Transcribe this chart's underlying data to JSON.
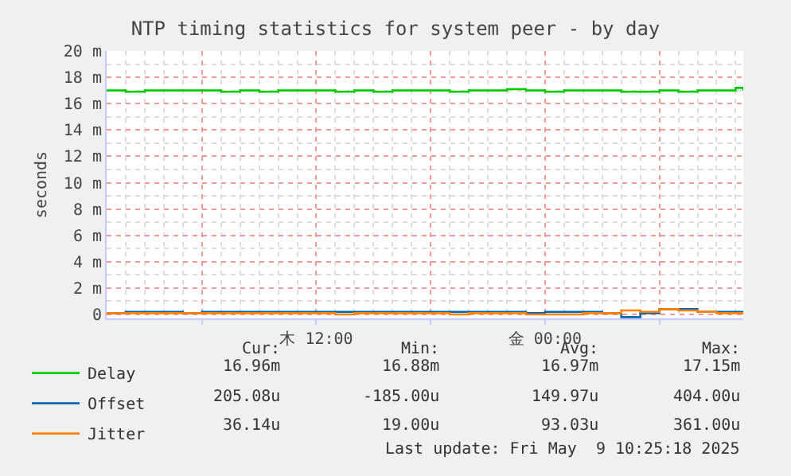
{
  "chart_data": {
    "type": "step",
    "title": "NTP timing statistics for system peer - by day",
    "ylabel": "seconds",
    "xlim": [
      "2025-05-08T01:00",
      "2025-05-09T10:24"
    ],
    "xticks": [
      {
        "value": "2025-05-08T06:00",
        "label": null
      },
      {
        "value": "2025-05-08T12:00",
        "label": "木 12:00"
      },
      {
        "value": "2025-05-08T18:00",
        "label": null
      },
      {
        "value": "2025-05-09T00:00",
        "label": "金 00:00"
      },
      {
        "value": "2025-05-09T06:00",
        "label": null
      }
    ],
    "ylim": [
      -0.3,
      20
    ],
    "yticks": [
      {
        "value": 0,
        "label": "0"
      },
      {
        "value": 2,
        "label": "2 m"
      },
      {
        "value": 4,
        "label": "4 m"
      },
      {
        "value": 6,
        "label": "6 m"
      },
      {
        "value": 8,
        "label": "8 m"
      },
      {
        "value": 10,
        "label": "10 m"
      },
      {
        "value": 12,
        "label": "12 m"
      },
      {
        "value": 14,
        "label": "14 m"
      },
      {
        "value": 16,
        "label": "16 m"
      },
      {
        "value": 18,
        "label": "18 m"
      },
      {
        "value": 20,
        "label": "20 m"
      }
    ],
    "x": [
      "2025-05-08T01:00",
      "2025-05-08T02:00",
      "2025-05-08T03:00",
      "2025-05-08T04:00",
      "2025-05-08T05:00",
      "2025-05-08T06:00",
      "2025-05-08T07:00",
      "2025-05-08T08:00",
      "2025-05-08T09:00",
      "2025-05-08T10:00",
      "2025-05-08T11:00",
      "2025-05-08T12:00",
      "2025-05-08T13:00",
      "2025-05-08T14:00",
      "2025-05-08T15:00",
      "2025-05-08T16:00",
      "2025-05-08T17:00",
      "2025-05-08T18:00",
      "2025-05-08T19:00",
      "2025-05-08T20:00",
      "2025-05-08T21:00",
      "2025-05-08T22:00",
      "2025-05-08T23:00",
      "2025-05-09T00:00",
      "2025-05-09T01:00",
      "2025-05-09T02:00",
      "2025-05-09T03:00",
      "2025-05-09T04:00",
      "2025-05-09T05:00",
      "2025-05-09T06:00",
      "2025-05-09T07:00",
      "2025-05-09T08:00",
      "2025-05-09T09:00",
      "2025-05-09T10:00",
      "2025-05-09T10:24"
    ],
    "series": [
      {
        "name": "Delay",
        "color": "#00cc00",
        "values": [
          17.0,
          16.9,
          17.0,
          17.0,
          17.0,
          17.0,
          16.9,
          17.0,
          16.9,
          17.0,
          17.0,
          17.0,
          16.9,
          17.0,
          16.9,
          17.0,
          17.0,
          17.0,
          16.9,
          17.0,
          17.0,
          17.1,
          17.0,
          16.9,
          17.0,
          17.0,
          17.0,
          16.9,
          16.9,
          17.0,
          16.9,
          17.0,
          17.0,
          17.2,
          17.0
        ]
      },
      {
        "name": "Offset",
        "color": "#0066b3",
        "values": [
          0.1,
          0.2,
          0.2,
          0.2,
          0.1,
          0.2,
          0.2,
          0.2,
          0.2,
          0.2,
          0.2,
          0.2,
          0.2,
          0.2,
          0.2,
          0.2,
          0.2,
          0.2,
          0.2,
          0.2,
          0.2,
          0.2,
          0.1,
          0.2,
          0.2,
          0.2,
          0.1,
          -0.2,
          0.1,
          0.4,
          0.4,
          0.2,
          0.2,
          0.2,
          0.2
        ]
      },
      {
        "name": "Jitter",
        "color": "#ff8000",
        "values": [
          0.1,
          0.1,
          0.1,
          0.1,
          0.1,
          0.1,
          0.1,
          0.1,
          0.1,
          0.1,
          0.1,
          0.1,
          0.0,
          0.1,
          0.1,
          0.1,
          0.1,
          0.1,
          0.0,
          0.1,
          0.1,
          0.1,
          0.0,
          0.0,
          0.0,
          0.1,
          0.1,
          0.3,
          0.2,
          0.4,
          0.3,
          0.2,
          0.1,
          0.1,
          0.0
        ]
      }
    ],
    "legend": "bottom left",
    "grid": true,
    "marker": "none",
    "line_style": "solid",
    "annotations": [
      "Cur:",
      "Min:",
      "Avg:",
      "Max:",
      "16.96m",
      "16.88m",
      "16.97m",
      "17.15m",
      "205.08u",
      "-185.00u",
      "149.97u",
      "404.00u",
      "36.14u",
      "19.00u",
      "93.03u",
      "361.00u",
      "Last update: Fri May  9 10:25:18 2025"
    ]
  }
}
